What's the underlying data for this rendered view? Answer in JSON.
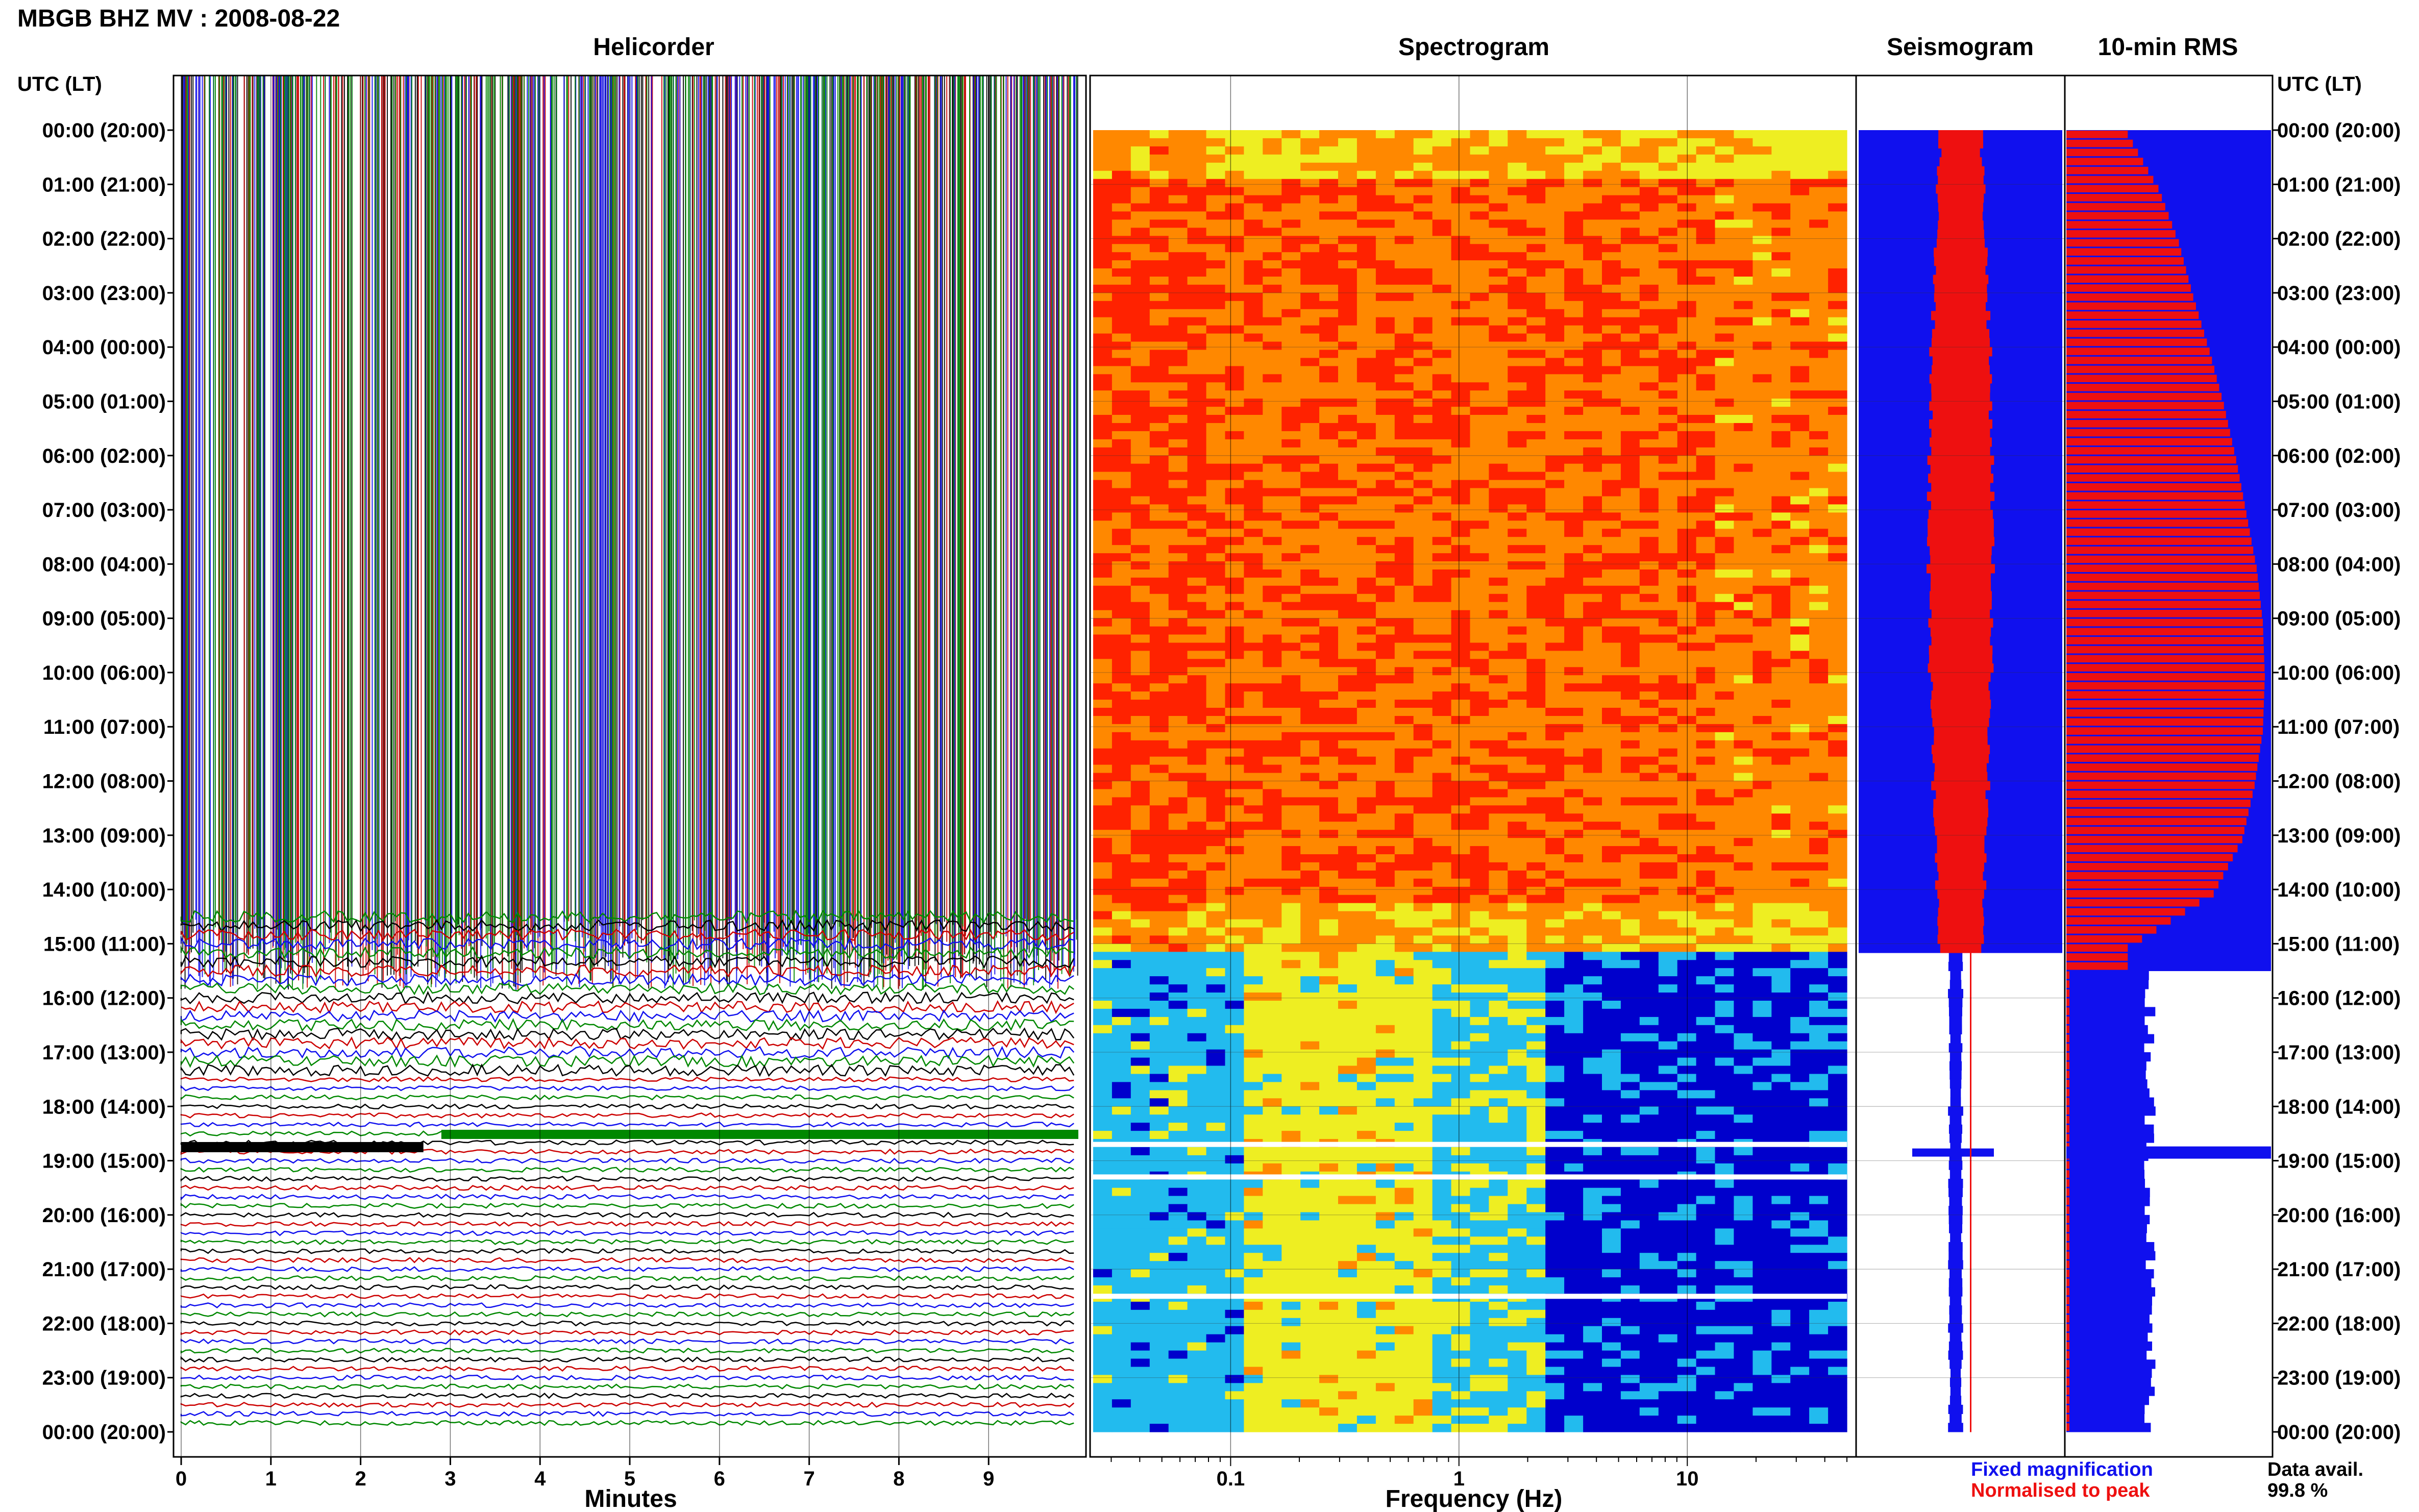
{
  "header": {
    "title": "MBGB BHZ MV : 2008-08-22",
    "time_axis_label": "UTC (LT)"
  },
  "panels": {
    "helicorder_title": "Helicorder",
    "spectrogram_title": "Spectrogram",
    "seismogram_title": "Seismogram",
    "rms_title": "10-min RMS"
  },
  "time_ticks": [
    "00:00 (20:00)",
    "01:00 (21:00)",
    "02:00 (22:00)",
    "03:00 (23:00)",
    "04:00 (00:00)",
    "05:00 (01:00)",
    "06:00 (02:00)",
    "07:00 (03:00)",
    "08:00 (04:00)",
    "09:00 (05:00)",
    "10:00 (06:00)",
    "11:00 (07:00)",
    "12:00 (08:00)",
    "13:00 (09:00)",
    "14:00 (10:00)",
    "15:00 (11:00)",
    "16:00 (12:00)",
    "17:00 (13:00)",
    "18:00 (14:00)",
    "19:00 (15:00)",
    "20:00 (16:00)",
    "21:00 (17:00)",
    "22:00 (18:00)",
    "23:00 (19:00)",
    "00:00 (20:00)"
  ],
  "legend": {
    "fixed": "Fixed magnification",
    "normalised": "Normalised to peak",
    "fixed_color": "#1010ee",
    "normalised_color": "#ee1010"
  },
  "availability": {
    "label": "Data avail.",
    "value": "99.8 %"
  },
  "chart_data": [
    {
      "type": "line",
      "name": "helicorder",
      "title": "Helicorder",
      "xlabel": "Minutes",
      "ylabel": "UTC (LT)",
      "x_ticks": [
        "0",
        "1",
        "2",
        "3",
        "4",
        "5",
        "6",
        "7",
        "8",
        "9"
      ],
      "xlim": [
        0,
        10
      ],
      "ylim_hours": [
        0,
        24
      ],
      "trace_colors": [
        "#000000",
        "#cc0000",
        "#1010ee",
        "#008800"
      ],
      "saturated_until_hour": 15.1,
      "high_amplitude_until_hour": 17.5,
      "event_hour": 18.75
    },
    {
      "type": "heatmap",
      "name": "spectrogram",
      "title": "Spectrogram",
      "xlabel": "Frequency (Hz)",
      "x_ticks": [
        "0.1",
        "1",
        "10"
      ],
      "x_scale": "log",
      "xlim": [
        0.025,
        50
      ],
      "ylim_hours": [
        0,
        24
      ],
      "regime_change_hour": 15.1,
      "gaps_hours": [
        18.7,
        19.3,
        21.5
      ],
      "palette": [
        "#0000cc",
        "#22bbee",
        "#eeee22",
        "#ff8800",
        "#ff2200"
      ]
    },
    {
      "type": "bar",
      "name": "seismogram",
      "title": "Seismogram",
      "series": [
        {
          "name": "Fixed magnification",
          "color": "#1010ee"
        },
        {
          "name": "Normalised to peak",
          "color": "#ee1010"
        }
      ],
      "ylim_hours": [
        0,
        24
      ]
    },
    {
      "type": "bar",
      "name": "rms",
      "title": "10-min RMS",
      "series": [
        {
          "name": "Fixed magnification",
          "color": "#1010ee"
        },
        {
          "name": "Normalised to peak",
          "color": "#ee1010"
        }
      ],
      "ylim_hours": [
        0,
        24
      ],
      "normalised_hourly_levels": [
        0.3,
        0.45,
        0.55,
        0.62,
        0.7,
        0.77,
        0.83,
        0.88,
        0.93,
        0.96,
        0.97,
        0.96,
        0.92,
        0.86,
        0.72,
        0.3
      ],
      "fixed_after_hour": 15.45,
      "fixed_level_after": 0.42,
      "spike_hour": 18.85,
      "spike_level": 1.0
    }
  ]
}
